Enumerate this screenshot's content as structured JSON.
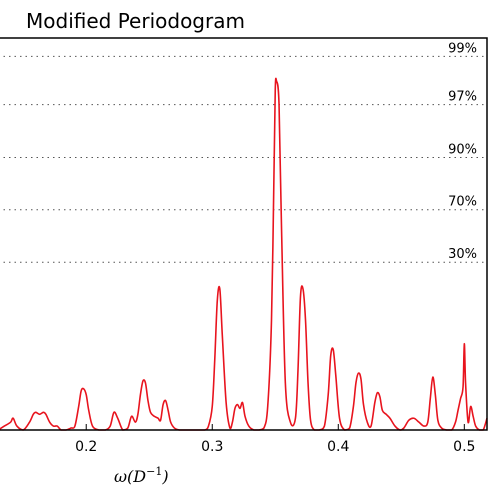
{
  "chart_data": {
    "type": "line",
    "title": "Modified Periodogram",
    "xlabel_base": "ω(D",
    "xlabel_sup": "−1",
    "xlabel_close": ")",
    "xlim": [
      0.13,
      0.518
    ],
    "ylim": [
      0,
      1
    ],
    "xticks": [
      {
        "value": 0.2,
        "label": "0.2"
      },
      {
        "value": 0.3,
        "label": "0.3"
      },
      {
        "value": 0.4,
        "label": "0.4"
      },
      {
        "value": 0.5,
        "label": "0.5"
      }
    ],
    "significance_levels": [
      {
        "label": "99%",
        "y": 0.953
      },
      {
        "label": "97%",
        "y": 0.83
      },
      {
        "label": "90%",
        "y": 0.695
      },
      {
        "label": "70%",
        "y": 0.562
      },
      {
        "label": "30%",
        "y": 0.428
      }
    ],
    "line_color": "#e8141e",
    "series": [
      {
        "x": [
          0.13,
          0.135,
          0.14,
          0.142,
          0.145,
          0.15,
          0.155,
          0.158,
          0.16,
          0.163,
          0.166,
          0.168,
          0.171,
          0.174,
          0.177,
          0.18,
          0.184,
          0.188,
          0.191,
          0.194,
          0.196,
          0.198,
          0.2,
          0.202,
          0.205,
          0.21,
          0.215,
          0.219,
          0.222,
          0.225,
          0.229,
          0.233,
          0.236,
          0.239,
          0.241,
          0.243,
          0.245,
          0.247,
          0.249,
          0.251,
          0.254,
          0.257,
          0.259,
          0.261,
          0.263,
          0.265,
          0.267,
          0.27,
          0.274,
          0.278,
          0.282,
          0.286,
          0.29,
          0.294,
          0.297,
          0.3,
          0.302,
          0.304,
          0.306,
          0.308,
          0.311,
          0.314,
          0.316,
          0.318,
          0.32,
          0.322,
          0.324,
          0.326,
          0.329,
          0.333,
          0.337,
          0.341,
          0.344,
          0.347,
          0.349,
          0.35,
          0.351,
          0.353,
          0.355,
          0.358,
          0.362,
          0.366,
          0.368,
          0.37,
          0.372,
          0.374,
          0.376,
          0.378,
          0.381,
          0.385,
          0.389,
          0.392,
          0.394,
          0.396,
          0.398,
          0.401,
          0.405,
          0.409,
          0.412,
          0.414,
          0.416,
          0.418,
          0.42,
          0.423,
          0.426,
          0.429,
          0.431,
          0.433,
          0.435,
          0.438,
          0.441,
          0.445,
          0.449,
          0.452,
          0.456,
          0.46,
          0.464,
          0.468,
          0.471,
          0.473,
          0.475,
          0.477,
          0.479,
          0.482,
          0.486,
          0.49,
          0.493,
          0.495,
          0.497,
          0.499,
          0.5,
          0.501,
          0.503,
          0.505,
          0.507,
          0.509,
          0.512,
          0.515,
          0.518
        ],
        "y": [
          0.0,
          0.01,
          0.02,
          0.03,
          0.01,
          0.0,
          0.02,
          0.04,
          0.045,
          0.04,
          0.045,
          0.04,
          0.02,
          0.01,
          0.01,
          0.0,
          0.0,
          0.005,
          0.01,
          0.06,
          0.1,
          0.105,
          0.09,
          0.05,
          0.01,
          0.0,
          0.0,
          0.01,
          0.045,
          0.03,
          0.0,
          0.005,
          0.035,
          0.02,
          0.04,
          0.09,
          0.125,
          0.12,
          0.075,
          0.045,
          0.035,
          0.03,
          0.025,
          0.065,
          0.075,
          0.05,
          0.02,
          0.005,
          0.0,
          0.0,
          0.0,
          0.0,
          0.0,
          0.0,
          0.01,
          0.06,
          0.18,
          0.33,
          0.36,
          0.24,
          0.07,
          0.005,
          0.02,
          0.055,
          0.065,
          0.055,
          0.07,
          0.035,
          0.01,
          0.0,
          0.0,
          0.005,
          0.06,
          0.28,
          0.66,
          0.87,
          0.89,
          0.83,
          0.51,
          0.12,
          0.02,
          0.03,
          0.15,
          0.34,
          0.36,
          0.28,
          0.12,
          0.025,
          0.0,
          0.0,
          0.01,
          0.09,
          0.19,
          0.205,
          0.14,
          0.03,
          0.0,
          0.005,
          0.06,
          0.12,
          0.145,
          0.13,
          0.065,
          0.02,
          0.01,
          0.07,
          0.095,
          0.085,
          0.05,
          0.04,
          0.03,
          0.01,
          0.0,
          0.005,
          0.025,
          0.03,
          0.02,
          0.01,
          0.02,
          0.08,
          0.135,
          0.09,
          0.025,
          0.005,
          0.0,
          0.0,
          0.02,
          0.05,
          0.08,
          0.11,
          0.22,
          0.12,
          0.02,
          0.06,
          0.035,
          0.01,
          0.0,
          0.0,
          0.03
        ]
      }
    ]
  }
}
